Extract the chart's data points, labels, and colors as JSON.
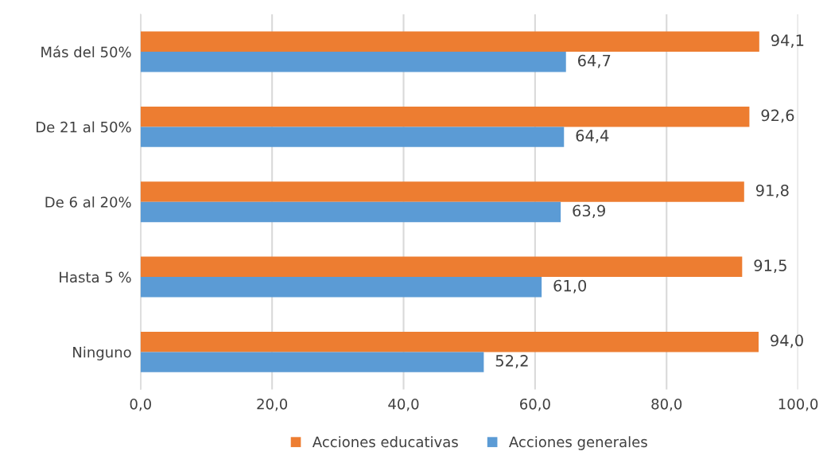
{
  "chart_data": {
    "type": "bar",
    "orientation": "horizontal",
    "categories": [
      "Más del 50%",
      "De 21 al 50%",
      "De 6 al 20%",
      "Hasta 5 %",
      "Ninguno"
    ],
    "series": [
      {
        "name": "Acciones educativas",
        "color": "#ed7d31",
        "values": [
          94.1,
          92.6,
          91.8,
          91.5,
          94.0
        ],
        "value_labels": [
          "94,1",
          "92,6",
          "91,8",
          "91,5",
          "94,0"
        ]
      },
      {
        "name": "Acciones generales",
        "color": "#5b9bd5",
        "values": [
          64.7,
          64.4,
          63.9,
          61.0,
          52.2
        ],
        "value_labels": [
          "64,7",
          "64,4",
          "63,9",
          "61,0",
          "52,2"
        ]
      }
    ],
    "xlim": [
      0,
      100
    ],
    "xticks": [
      {
        "value": 0,
        "label": "0,0"
      },
      {
        "value": 20,
        "label": "20,0"
      },
      {
        "value": 40,
        "label": "40,0"
      },
      {
        "value": 60,
        "label": "60,0"
      },
      {
        "value": 80,
        "label": "80,0"
      },
      {
        "value": 100,
        "label": "100,0"
      }
    ],
    "grid": "x",
    "legend": "bottom"
  }
}
